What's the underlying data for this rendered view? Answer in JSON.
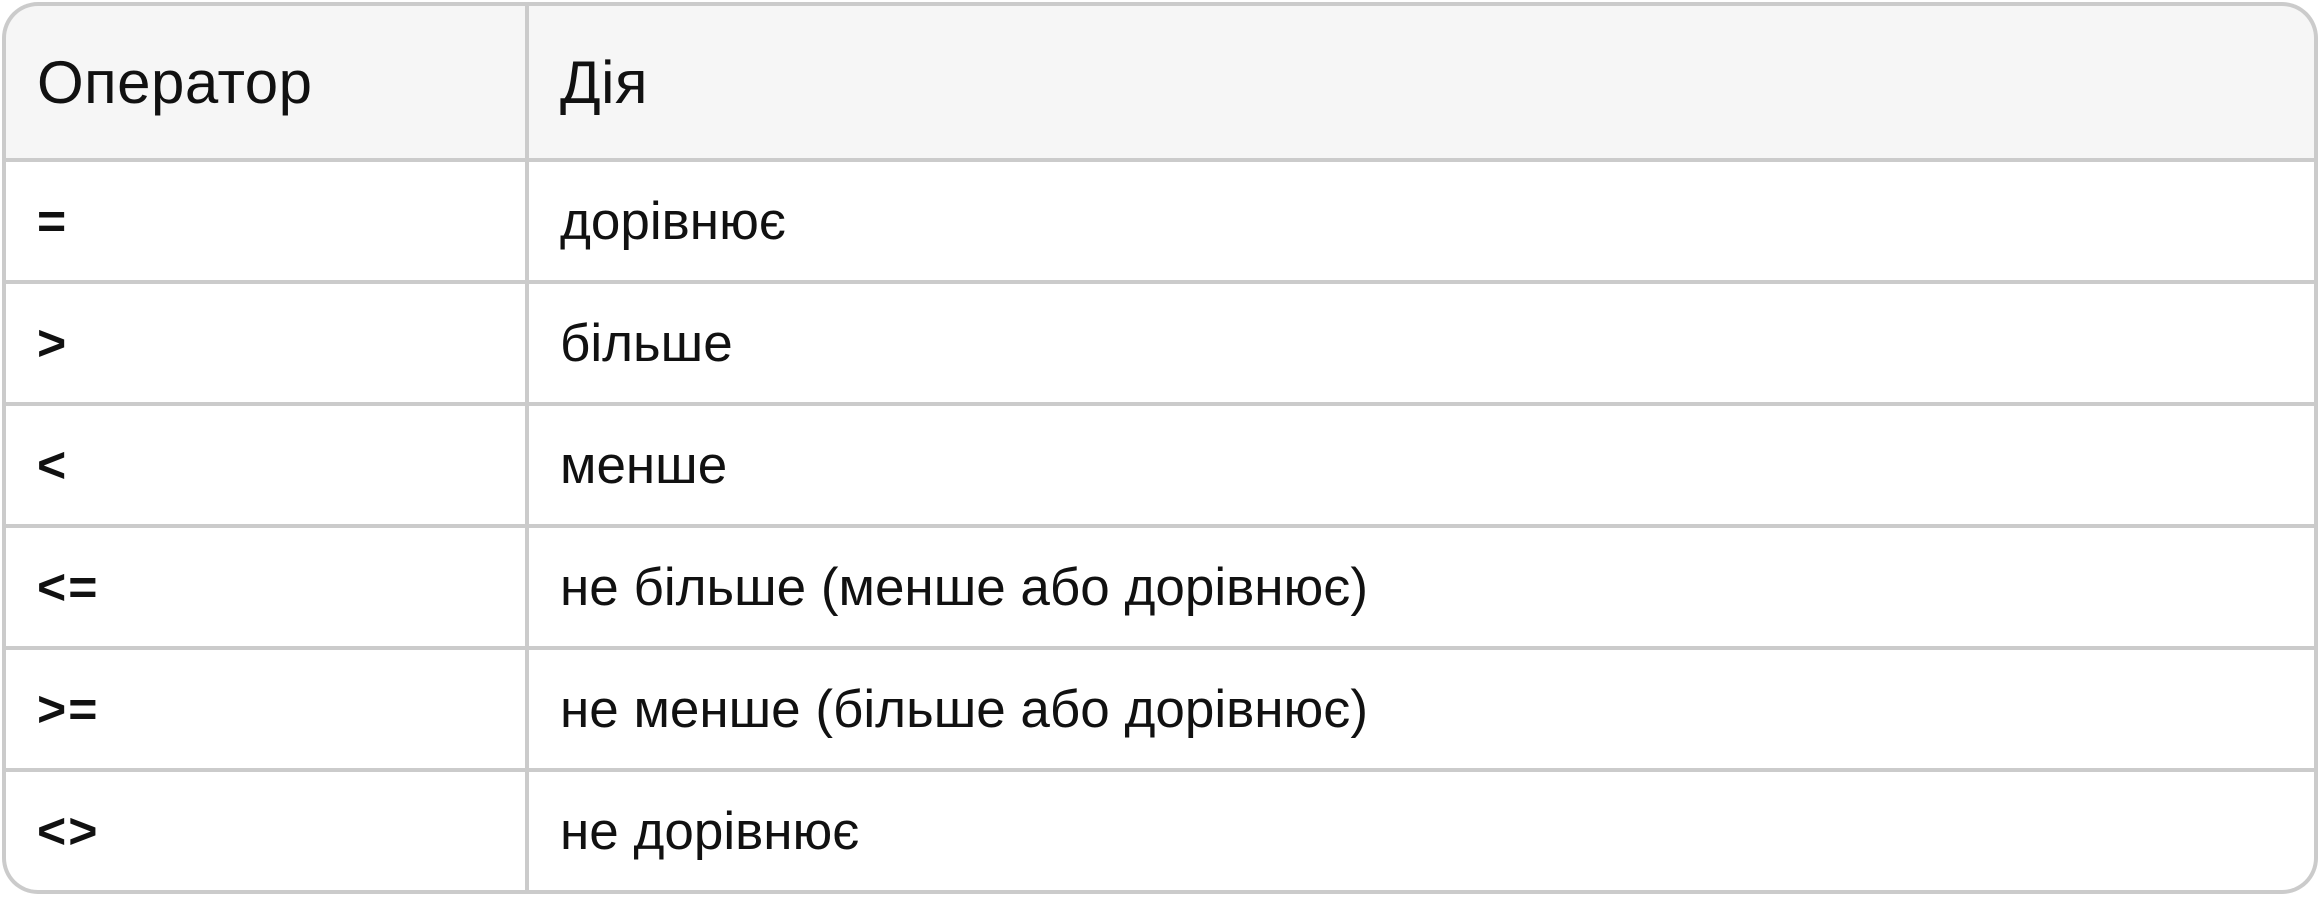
{
  "table": {
    "columns": [
      "Оператор",
      "Дія"
    ],
    "rows": [
      {
        "operator": "=",
        "action": "дорівнює"
      },
      {
        "operator": ">",
        "action": "більше"
      },
      {
        "operator": "<",
        "action": "менше"
      },
      {
        "operator": "<=",
        "action": "не більше (менше або дорівнює)"
      },
      {
        "operator": ">=",
        "action": "не менше (більше або дорівнює)"
      },
      {
        "operator": "<>",
        "action": "не дорівнює"
      }
    ]
  },
  "colors": {
    "grid_border": "#cbcbcb",
    "header_background": "#f6f6f6",
    "cell_background": "#ffffff",
    "text": "#111111"
  },
  "chart_data": {
    "type": "table",
    "title": "",
    "columns": [
      "Оператор",
      "Дія"
    ],
    "rows": [
      [
        "=",
        "дорівнює"
      ],
      [
        ">",
        "більше"
      ],
      [
        "<",
        "менше"
      ],
      [
        "<=",
        "не більше (менше або дорівнює)"
      ],
      [
        ">=",
        "не менше (більше або дорівнює)"
      ],
      [
        "<>",
        "не дорівнює"
      ]
    ]
  }
}
